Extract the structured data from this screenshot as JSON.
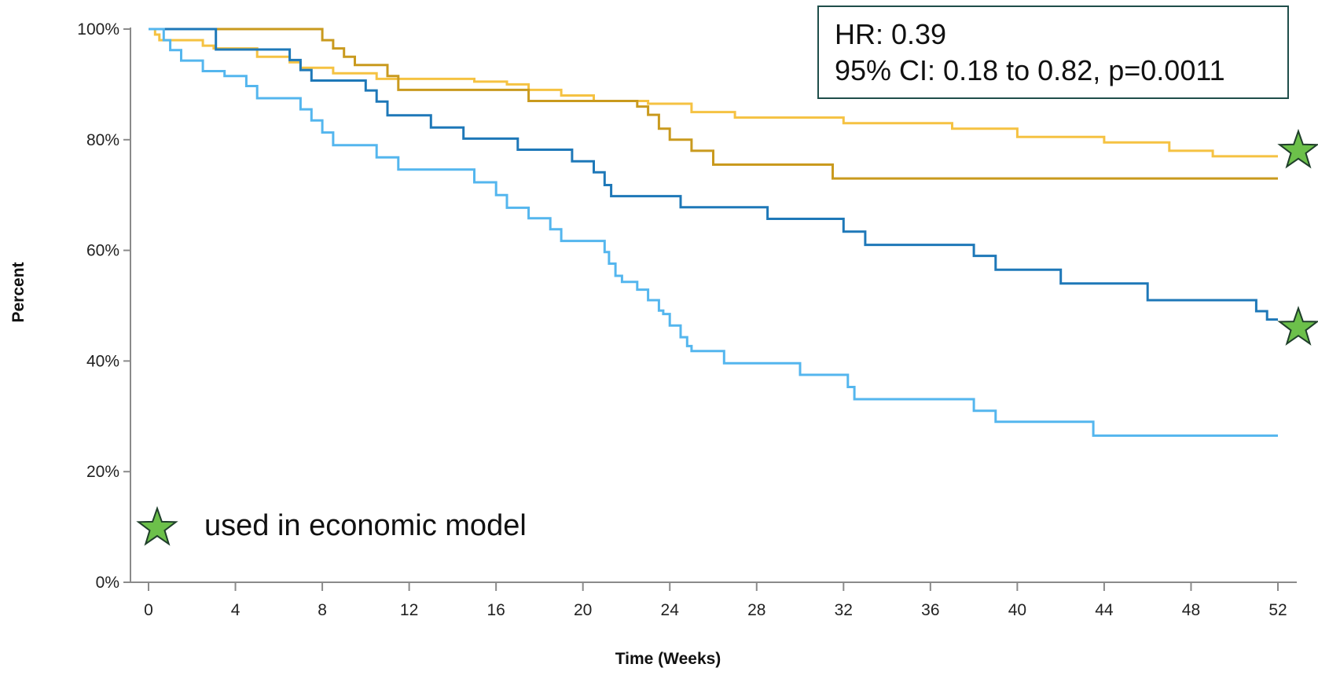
{
  "stats": {
    "hr": "HR: 0.39",
    "ci": "95% CI: 0.18 to 0.82, p=0.0011"
  },
  "legend": {
    "star_label": "used in economic model",
    "star_color": "#6cc04a"
  },
  "chart_data": {
    "type": "line",
    "step": true,
    "xlabel": "Time (Weeks)",
    "ylabel": "Percent",
    "xlim": [
      0,
      52
    ],
    "ylim": [
      0,
      100
    ],
    "xticks": [
      "0",
      "4",
      "8",
      "12",
      "16",
      "20",
      "24",
      "28",
      "32",
      "36",
      "40",
      "44",
      "48",
      "52"
    ],
    "yticks": [
      "0%",
      "20%",
      "40%",
      "60%",
      "80%",
      "100%"
    ],
    "series": [
      {
        "color": "#f5c242",
        "points": [
          [
            0,
            100
          ],
          [
            0.3,
            99
          ],
          [
            0.5,
            98
          ],
          [
            2.5,
            97
          ],
          [
            3,
            96.5
          ],
          [
            5,
            95
          ],
          [
            6.5,
            94
          ],
          [
            7,
            93
          ],
          [
            8.5,
            92
          ],
          [
            10.5,
            91
          ],
          [
            12,
            91
          ],
          [
            15,
            90.5
          ],
          [
            16.5,
            90
          ],
          [
            17.5,
            89
          ],
          [
            19,
            88
          ],
          [
            20.5,
            87
          ],
          [
            23,
            86.5
          ],
          [
            25,
            85
          ],
          [
            27,
            84
          ],
          [
            32,
            83
          ],
          [
            37,
            82
          ],
          [
            40,
            80.5
          ],
          [
            44,
            79.5
          ],
          [
            47,
            78
          ],
          [
            49,
            77
          ],
          [
            52,
            77
          ]
        ]
      },
      {
        "color": "#c99a1e",
        "points": [
          [
            0,
            100
          ],
          [
            7,
            100
          ],
          [
            8,
            98
          ],
          [
            8.5,
            96.5
          ],
          [
            9,
            95
          ],
          [
            9.5,
            93.5
          ],
          [
            11,
            91.5
          ],
          [
            11.5,
            89
          ],
          [
            15,
            89
          ],
          [
            17.5,
            87
          ],
          [
            22,
            87
          ],
          [
            22.5,
            86
          ],
          [
            23,
            84.5
          ],
          [
            23.5,
            82
          ],
          [
            24,
            80
          ],
          [
            25,
            78
          ],
          [
            26,
            75.5
          ],
          [
            31,
            75.5
          ],
          [
            31.5,
            73
          ],
          [
            52,
            73
          ]
        ]
      },
      {
        "color": "#1e78b8",
        "points": [
          [
            0,
            100
          ],
          [
            3,
            100
          ],
          [
            3.1,
            96.3
          ],
          [
            6,
            96.3
          ],
          [
            6.5,
            94.4
          ],
          [
            7,
            92.6
          ],
          [
            7.5,
            90.7
          ],
          [
            9.5,
            90.7
          ],
          [
            10,
            88.9
          ],
          [
            10.5,
            86.9
          ],
          [
            11,
            84.4
          ],
          [
            12.5,
            84.4
          ],
          [
            13,
            82.2
          ],
          [
            14.5,
            80.2
          ],
          [
            17,
            78.2
          ],
          [
            19.5,
            76.1
          ],
          [
            20.5,
            74.1
          ],
          [
            21,
            71.8
          ],
          [
            21.3,
            69.8
          ],
          [
            24,
            69.8
          ],
          [
            24.5,
            67.8
          ],
          [
            28.5,
            65.7
          ],
          [
            32,
            63.4
          ],
          [
            33,
            61
          ],
          [
            38,
            59
          ],
          [
            39,
            56.5
          ],
          [
            42,
            54
          ],
          [
            46,
            51
          ],
          [
            51,
            49
          ],
          [
            51.5,
            47.5
          ],
          [
            52,
            47.5
          ]
        ]
      },
      {
        "color": "#54b6ee",
        "points": [
          [
            0,
            100
          ],
          [
            0.7,
            98
          ],
          [
            1,
            96.2
          ],
          [
            1.5,
            94.3
          ],
          [
            2.5,
            92.4
          ],
          [
            3.5,
            91.5
          ],
          [
            4.5,
            89.7
          ],
          [
            5,
            87.5
          ],
          [
            7,
            85.5
          ],
          [
            7.5,
            83.5
          ],
          [
            8,
            81.3
          ],
          [
            8.5,
            79
          ],
          [
            10.5,
            76.8
          ],
          [
            11.5,
            74.6
          ],
          [
            14,
            74.6
          ],
          [
            15,
            72.3
          ],
          [
            16,
            70
          ],
          [
            16.5,
            67.7
          ],
          [
            17.5,
            65.8
          ],
          [
            18.5,
            63.8
          ],
          [
            19,
            61.7
          ],
          [
            21,
            59.7
          ],
          [
            21.2,
            57.6
          ],
          [
            21.5,
            55.4
          ],
          [
            21.8,
            54.3
          ],
          [
            22.5,
            52.9
          ],
          [
            23,
            51
          ],
          [
            23.5,
            49.1
          ],
          [
            23.7,
            48.5
          ],
          [
            24,
            46.4
          ],
          [
            24.5,
            44.3
          ],
          [
            24.8,
            42.7
          ],
          [
            25,
            41.8
          ],
          [
            26,
            41.8
          ],
          [
            26.5,
            39.6
          ],
          [
            29.5,
            39.6
          ],
          [
            30,
            37.5
          ],
          [
            32,
            37.5
          ],
          [
            32.2,
            35.3
          ],
          [
            32.5,
            33.1
          ],
          [
            37,
            33.1
          ],
          [
            38,
            31
          ],
          [
            39,
            29
          ],
          [
            43,
            29
          ],
          [
            43.5,
            26.5
          ],
          [
            52,
            26.5
          ]
        ]
      }
    ],
    "markers": [
      {
        "shape": "star",
        "y": 78
      },
      {
        "shape": "star",
        "y": 46
      }
    ]
  }
}
